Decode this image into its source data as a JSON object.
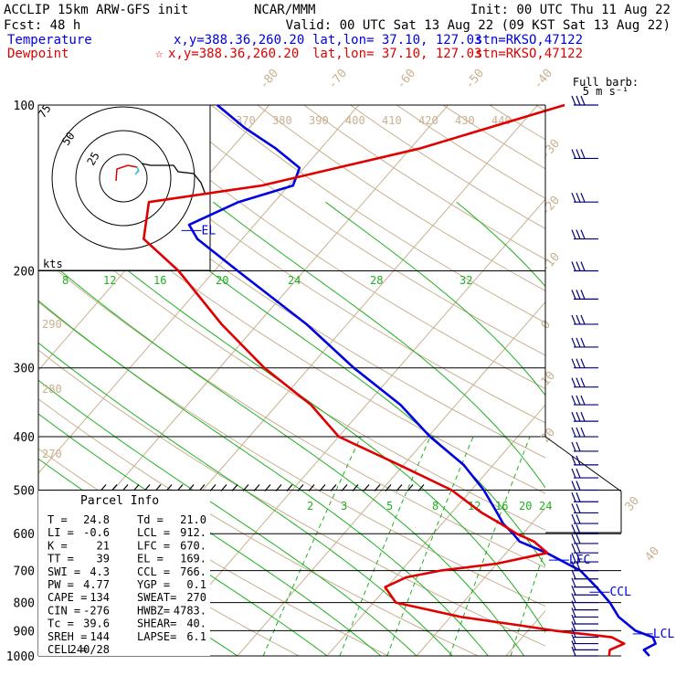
{
  "header": {
    "model": "ACCLIP 15km ARW-GFS init",
    "org": "NCAR/MMM",
    "init": "Init: 00 UTC Thu 11 Aug 22",
    "fcst": "Fcst:   48 h",
    "valid": "Valid: 00 UTC Sat 13 Aug 22 (09 KST Sat 13 Aug 22)"
  },
  "legend": {
    "temperature": {
      "name": "Temperature",
      "xy": "x,y=388.36,260.20",
      "latlon": "lat,lon= 37.10, 127.03",
      "stn": "stn=RKSO,47122"
    },
    "dewpoint": {
      "name": "Dewpoint",
      "xy": "x,y=388.36,260.20",
      "latlon": "lat,lon= 37.10, 127.03",
      "stn": "stn=RKSO,47122"
    }
  },
  "barb_key": {
    "line1": "Full barb:",
    "line2": "5 m s⁻¹"
  },
  "hodograph": {
    "kts_label": "kts",
    "rings": [
      "25",
      "50",
      "75"
    ]
  },
  "parcel_info": {
    "title": "Parcel Info",
    "rows": [
      [
        "T  =",
        "24.8",
        "Td =",
        "21.0"
      ],
      [
        "LI =",
        "-0.6",
        "LCL =",
        "912."
      ],
      [
        "K  =",
        "21",
        "LFC =",
        "670."
      ],
      [
        "TT =",
        "39",
        "EL  =",
        "169."
      ],
      [
        "SWI =",
        "4.3",
        "CCL =",
        "766."
      ],
      [
        "PW =",
        "4.77",
        "YGP =",
        "0.1"
      ],
      [
        "CAPE =",
        "134",
        "SWEAT=",
        "270"
      ],
      [
        "CIN =",
        "-276",
        "HWBZ=",
        "4783."
      ],
      [
        "Tc =",
        "39.6",
        "SHEAR=",
        "40."
      ],
      [
        "SREH =",
        "144",
        "LAPSE=",
        "6.1"
      ],
      [
        "CELL =",
        "240/28",
        "",
        ""
      ]
    ]
  },
  "colors": {
    "temperature": "#0000e0",
    "dewpoint": "#e00000",
    "hodo_black": "#000000",
    "hodo_cyan": "#40c0d0",
    "isotherm": "#c8b090",
    "isentrope": "#c8b090",
    "mixing_ratio": "#20b020",
    "moist_adiabat": "#20b020",
    "barbs": "#000070",
    "isobar": "#000000"
  },
  "chart_data": {
    "type": "skew-t log-p sounding",
    "pressure_axis": {
      "label_values": [
        100,
        200,
        300,
        400,
        500,
        600,
        700,
        800,
        900,
        1000
      ],
      "range": [
        1000,
        100
      ],
      "scale": "log"
    },
    "isotherm_labels": [
      "-80",
      "-70",
      "-60",
      "-50",
      "-40",
      "-30",
      "-20",
      "-10",
      "0",
      "10",
      "20",
      "30",
      "40"
    ],
    "isentrope_labels_top": [
      "370",
      "380",
      "390",
      "400",
      "410",
      "420",
      "430",
      "440"
    ],
    "isentrope_labels_side": [
      "290",
      "280",
      "270"
    ],
    "theta_e_labels": [
      "8",
      "12",
      "16",
      "20",
      "24",
      "28",
      "32"
    ],
    "mixing_ratio_labels": [
      "2",
      "3",
      "5",
      "8",
      "12",
      "16",
      "20",
      "24"
    ],
    "level_markers": [
      {
        "name": "EL",
        "pressure": 169
      },
      {
        "name": "LFC",
        "pressure": 670
      },
      {
        "name": "CCL",
        "pressure": 766
      },
      {
        "name": "LCL",
        "pressure": 912
      }
    ],
    "series": [
      {
        "name": "Temperature",
        "pressure": [
          1000,
          975,
          950,
          925,
          900,
          850,
          800,
          750,
          700,
          650,
          620,
          600,
          575,
          550,
          500,
          450,
          400,
          350,
          300,
          250,
          200,
          175,
          165,
          150,
          140,
          130,
          120,
          110,
          100
        ],
        "value_c": [
          26.0,
          24.8,
          25.5,
          24.6,
          22.0,
          18.8,
          16.4,
          13.4,
          10.0,
          4.5,
          0.4,
          -1.1,
          -3.2,
          -4.9,
          -8.6,
          -13.3,
          -19.8,
          -26.2,
          -35.0,
          -44.5,
          -57.4,
          -65.0,
          -67.3,
          -64.0,
          -59.5,
          -60.5,
          -65.0,
          -70.5,
          -75.8
        ]
      },
      {
        "name": "Dewpoint",
        "pressure": [
          1000,
          975,
          950,
          925,
          900,
          880,
          850,
          800,
          750,
          720,
          700,
          680,
          650,
          620,
          600,
          575,
          550,
          500,
          450,
          400,
          350,
          300,
          250,
          200,
          175,
          150,
          140,
          120,
          100
        ],
        "value_c": [
          21.5,
          21.0,
          22.0,
          20.0,
          13.0,
          8.5,
          1.2,
          -7.5,
          -10.2,
          -8.8,
          -5.6,
          0.0,
          4.6,
          2.0,
          -0.7,
          -3.5,
          -6.6,
          -12.2,
          -20.5,
          -30.0,
          -36.2,
          -45.0,
          -54.0,
          -64.0,
          -71.0,
          -74.0,
          -63.0,
          -49.0,
          -37.0
        ]
      }
    ]
  }
}
